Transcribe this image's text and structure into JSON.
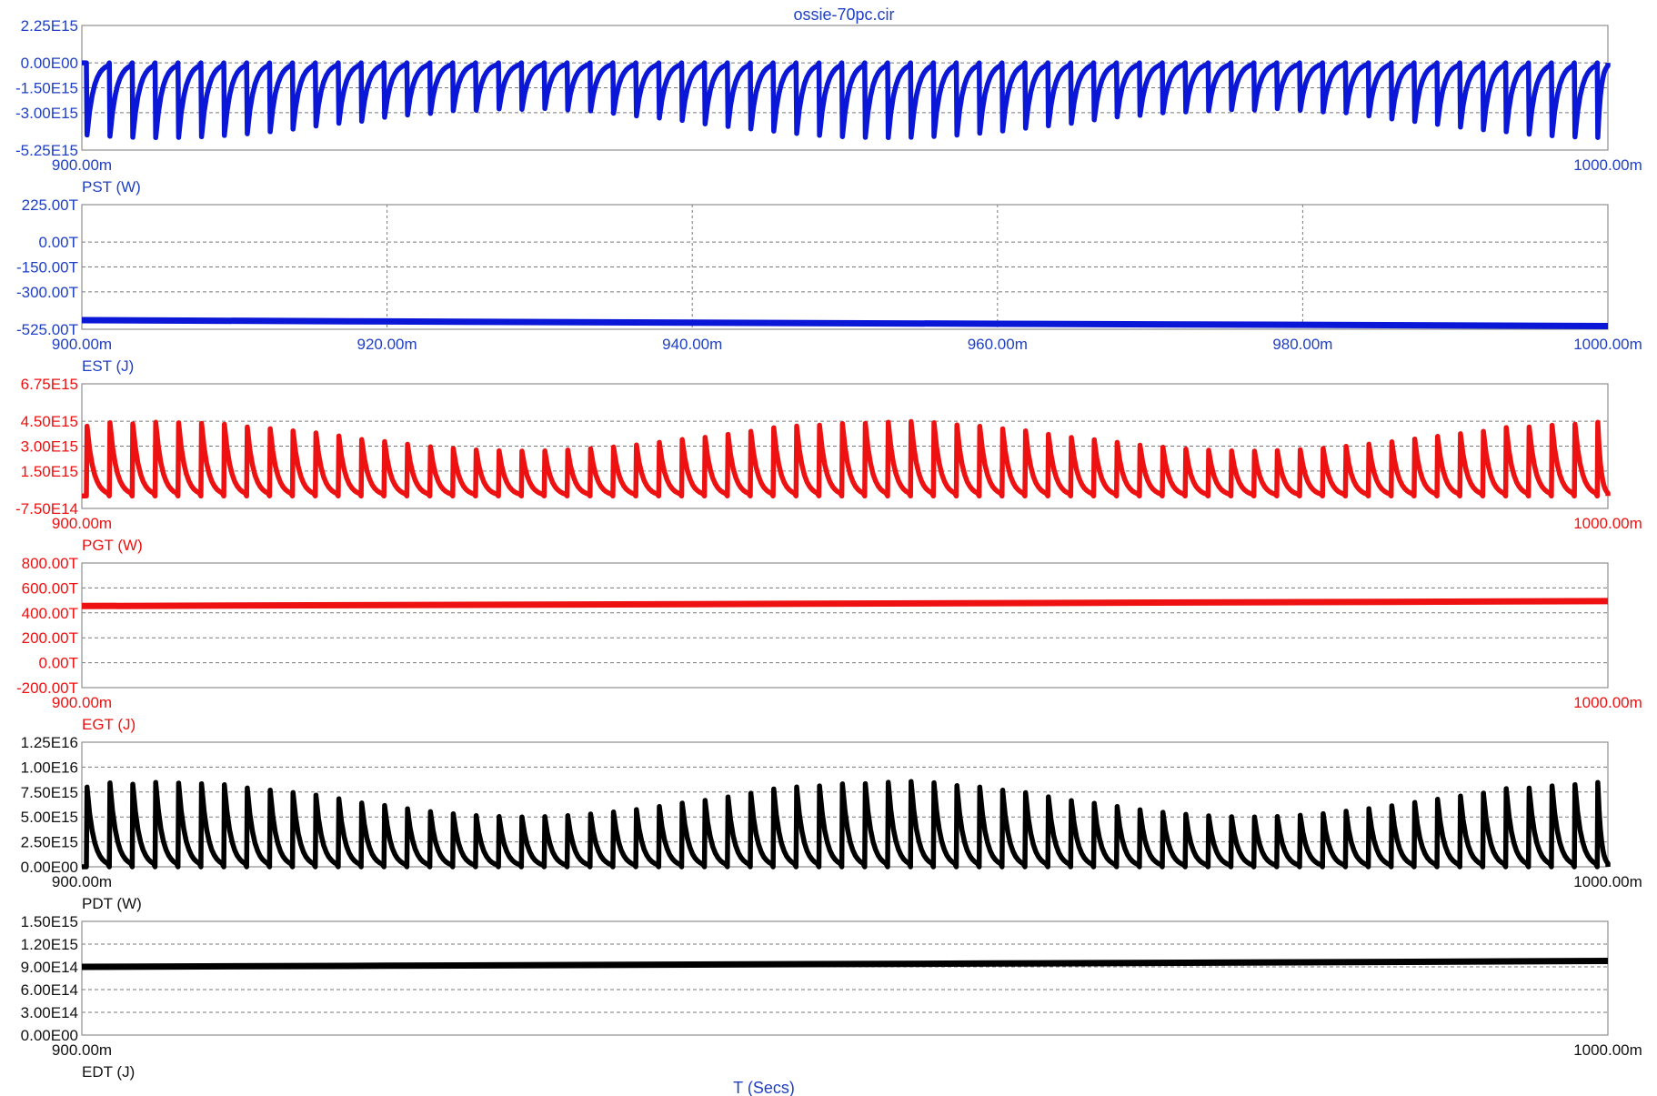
{
  "title": "ossie-70pc.cir",
  "x_axis_label": "T (Secs)",
  "chart_data": [
    {
      "type": "line",
      "series": [
        {
          "name": "PST (W)",
          "color": "#0b17d6",
          "waveform": "negative-spikes",
          "period_ms": 1.5,
          "spike_extreme": -3600000000000000.0,
          "spike_extreme_range": [
            -4500000000000000.0,
            -2700000000000000.0
          ],
          "baseline": 0.0
        }
      ],
      "ylim": [
        -5250000000000000.0,
        2250000000000000.0
      ],
      "yticks": [
        "2.25E15",
        "0.00E00",
        "-1.50E15",
        "-3.00E15",
        "-5.25E15"
      ],
      "ytick_values": [
        2250000000000000.0,
        0,
        -1500000000000000.0,
        -3000000000000000.0,
        -5250000000000000.0
      ],
      "xlim": [
        900,
        1000
      ],
      "xticks": [
        "900.00m",
        "1000.00m"
      ],
      "xtick_values": [
        900,
        1000
      ],
      "grid_vertical": false,
      "label_color": "#1f3fc4"
    },
    {
      "type": "line",
      "series": [
        {
          "name": "EST (J)",
          "color": "#0b17d6",
          "points": [
            [
              900,
              -470
            ],
            [
              920,
              -478
            ],
            [
              940,
              -485
            ],
            [
              960,
              -492
            ],
            [
              980,
              -498
            ],
            [
              1000,
              -506
            ]
          ]
        }
      ],
      "ylim": [
        -525,
        225
      ],
      "yticks": [
        "225.00T",
        "0.00T",
        "-150.00T",
        "-300.00T",
        "-525.00T"
      ],
      "ytick_values": [
        225,
        0,
        -150,
        -300,
        -525
      ],
      "xlim": [
        900,
        1000
      ],
      "xticks": [
        "900.00m",
        "920.00m",
        "940.00m",
        "960.00m",
        "980.00m",
        "1000.00m"
      ],
      "xtick_values": [
        900,
        920,
        940,
        960,
        980,
        1000
      ],
      "grid_vertical": true,
      "label_color": "#1f3fc4"
    },
    {
      "type": "line",
      "series": [
        {
          "name": "PGT (W)",
          "color": "#ee1111",
          "waveform": "positive-spikes",
          "period_ms": 1.5,
          "spike_extreme": 3600000000000000.0,
          "spike_extreme_range": [
            2700000000000000.0,
            4500000000000000.0
          ],
          "baseline": 0.0
        }
      ],
      "ylim": [
        -750000000000000.0,
        6750000000000000.0
      ],
      "yticks": [
        "6.75E15",
        "4.50E15",
        "3.00E15",
        "1.50E15",
        "-7.50E14"
      ],
      "ytick_values": [
        6750000000000000.0,
        4500000000000000.0,
        3000000000000000.0,
        1500000000000000.0,
        -750000000000000.0
      ],
      "xlim": [
        900,
        1000
      ],
      "xticks": [
        "900.00m",
        "1000.00m"
      ],
      "xtick_values": [
        900,
        1000
      ],
      "grid_vertical": false,
      "label_color": "#ee1111"
    },
    {
      "type": "line",
      "series": [
        {
          "name": "EGT (J)",
          "color": "#ee1111",
          "points": [
            [
              900,
              455
            ],
            [
              920,
              462
            ],
            [
              940,
              470
            ],
            [
              960,
              478
            ],
            [
              980,
              486
            ],
            [
              1000,
              494
            ]
          ]
        }
      ],
      "ylim": [
        -200,
        800
      ],
      "yticks": [
        "800.00T",
        "600.00T",
        "400.00T",
        "200.00T",
        "0.00T",
        "-200.00T"
      ],
      "ytick_values": [
        800,
        600,
        400,
        200,
        0,
        -200
      ],
      "xlim": [
        900,
        1000
      ],
      "xticks": [
        "900.00m",
        "1000.00m"
      ],
      "xtick_values": [
        900,
        1000
      ],
      "grid_vertical": false,
      "label_color": "#ee1111"
    },
    {
      "type": "line",
      "series": [
        {
          "name": "PDT (W)",
          "color": "#000000",
          "waveform": "positive-spikes",
          "period_ms": 1.5,
          "spike_extreme": 7000000000000000.0,
          "spike_extreme_range": [
            5000000000000000.0,
            8600000000000000.0
          ],
          "baseline": 0.0
        }
      ],
      "ylim": [
        0,
        1.25e+16
      ],
      "yticks": [
        "1.25E16",
        "1.00E16",
        "7.50E15",
        "5.00E15",
        "2.50E15",
        "0.00E00"
      ],
      "ytick_values": [
        1.25e+16,
        1e+16,
        7500000000000000.0,
        5000000000000000.0,
        2500000000000000.0,
        0
      ],
      "xlim": [
        900,
        1000
      ],
      "xticks": [
        "900.00m",
        "1000.00m"
      ],
      "xtick_values": [
        900,
        1000
      ],
      "grid_vertical": false,
      "label_color": "#111111"
    },
    {
      "type": "line",
      "series": [
        {
          "name": "EDT (J)",
          "color": "#000000",
          "points": [
            [
              900,
              900000000000000.0
            ],
            [
              920,
              915000000000000.0
            ],
            [
              940,
              930000000000000.0
            ],
            [
              960,
              945000000000000.0
            ],
            [
              980,
              960000000000000.0
            ],
            [
              1000,
              978000000000000.0
            ]
          ]
        }
      ],
      "ylim": [
        0,
        1500000000000000.0
      ],
      "yticks": [
        "1.50E15",
        "1.20E15",
        "9.00E14",
        "6.00E14",
        "3.00E14",
        "0.00E00"
      ],
      "ytick_values": [
        1500000000000000.0,
        1200000000000000.0,
        900000000000000.0,
        600000000000000.0,
        300000000000000.0,
        0
      ],
      "xlim": [
        900,
        1000
      ],
      "xticks": [
        "900.00m",
        "1000.00m"
      ],
      "xtick_values": [
        900,
        1000
      ],
      "grid_vertical": false,
      "label_color": "#111111"
    }
  ]
}
